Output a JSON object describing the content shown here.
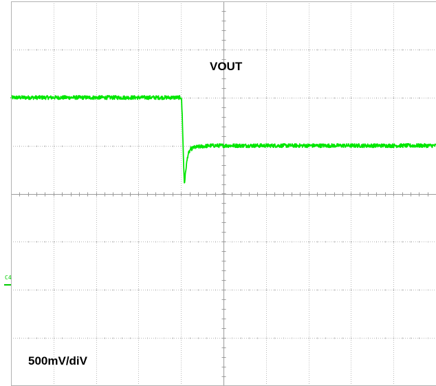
{
  "chart_data": {
    "type": "line",
    "annotations": {
      "signal_label": "VOUT",
      "scale_label": "500mV/diV",
      "channel_marker": "C4"
    },
    "grid": {
      "on": true,
      "style": "dotted",
      "major_x_divisions": 10,
      "major_y_divisions": 8,
      "minor_ticks_per_division": 5
    },
    "xlim": [
      0,
      10
    ],
    "ylim": [
      -4,
      4
    ],
    "series": [
      {
        "color": "#00e600",
        "noise": 0.04,
        "x": [
          0,
          4.01,
          4.03,
          4.06,
          4.08,
          4.12,
          4.16,
          4.22,
          4.3,
          4.45,
          4.7,
          5.0,
          10
        ],
        "y": [
          2.0,
          2.0,
          1.6,
          0.65,
          0.2,
          0.55,
          0.8,
          0.92,
          0.96,
          0.98,
          1.0,
          1.0,
          1.0
        ]
      }
    ],
    "channel_marker_level": -1.9,
    "colors": {
      "trace": "#00e600",
      "grid": "#b8b8b8",
      "axis": "#9a9a9a",
      "background": "#ffffff"
    }
  }
}
